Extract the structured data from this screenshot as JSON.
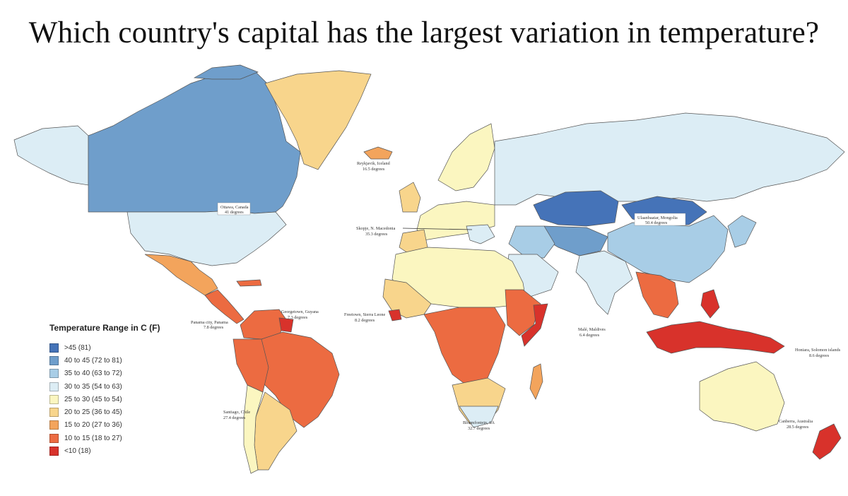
{
  "title": "Which country's capital has the largest variation in temperature?",
  "legend": {
    "title": "Temperature Range in C (F)",
    "items": [
      {
        "label": ">45 (81)",
        "color": "#4573b8"
      },
      {
        "label": "40 to 45 (72 to 81)",
        "color": "#6f9ecb"
      },
      {
        "label": "35 to 40 (63 to 72)",
        "color": "#a8cde6"
      },
      {
        "label": "30 to 35 (54 to 63)",
        "color": "#dcedf5"
      },
      {
        "label": "25 to 30 (45 to 54)",
        "color": "#fbf6c0"
      },
      {
        "label": "20 to 25 (36 to 45)",
        "color": "#f8d58c"
      },
      {
        "label": "15 to 20 (27 to 36)",
        "color": "#f3a45c"
      },
      {
        "label": "10 to 15 (18 to 27)",
        "color": "#ec6b41"
      },
      {
        "label": "<10 (18)",
        "color": "#d8322b"
      }
    ]
  },
  "annotations": [
    {
      "city": "Reykjavik, Iceland",
      "value": "16.5 degrees"
    },
    {
      "city": "Ottawa, Canada",
      "value": "41 degrees"
    },
    {
      "city": "Skopje, N. Macedonia",
      "value": "35.3 degrees"
    },
    {
      "city": "Ulaanbaatar, Mongolia",
      "value": "50.4 degrees"
    },
    {
      "city": "Georgetown, Guyana",
      "value": "7.3 degrees"
    },
    {
      "city": "Panama city, Panama",
      "value": "7.8 degrees"
    },
    {
      "city": "Freetown, Sierra Leone",
      "value": "8.2 degrees"
    },
    {
      "city": "Malé, Maldives",
      "value": "6.4 degrees"
    },
    {
      "city": "Honiara, Solomon islands",
      "value": "8.6 degrees"
    },
    {
      "city": "Santiago, Chile",
      "value": "27.4 degrees"
    },
    {
      "city": "Bloemfontein, SA",
      "value": "32.7 degrees"
    },
    {
      "city": "Canberra, Australia",
      "value": "28.5 degrees"
    }
  ]
}
